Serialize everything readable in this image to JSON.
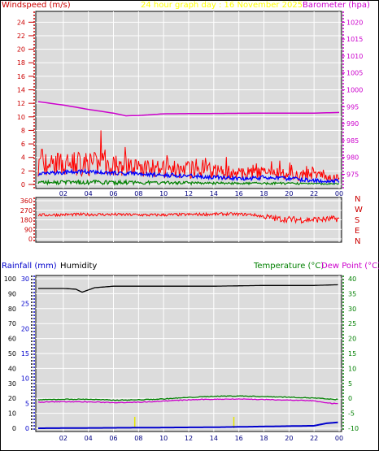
{
  "header": {
    "windspeed": "Windspeed (m/s)",
    "graph_title": "24 hour graph day : 16 November 2025",
    "barometer": "Barometer (hpa)",
    "rainfall": "Rainfall (mm)",
    "humidity": "Humidity",
    "temperature": "Temperature (°C)",
    "dewpoint": "Dew Point (°C)"
  },
  "colors": {
    "wind": "#ff0000",
    "average": "#0000ff",
    "gust_low": "#008000",
    "barometer": "#cc00cc",
    "rain": "#0000cc",
    "humidity": "#000000",
    "temperature": "#008000",
    "dewpoint": "#cc00cc",
    "background": "#dcdcdc"
  },
  "chart_data": [
    {
      "type": "line",
      "name": "wind",
      "x_ticks": [
        "02",
        "04",
        "06",
        "08",
        "10",
        "12",
        "14",
        "16",
        "18",
        "20",
        "22",
        "00"
      ],
      "left_ticks": [
        "0",
        "2",
        "4",
        "6",
        "8",
        "10",
        "12",
        "14",
        "16",
        "18",
        "20",
        "22",
        "24"
      ],
      "right_ticks": [
        "975",
        "980",
        "985",
        "990",
        "995",
        "1000",
        "1005",
        "1010",
        "1015",
        "1020"
      ],
      "ylim_left": [
        0,
        25
      ],
      "ylim_right": [
        972,
        1022
      ],
      "grid": true,
      "barometer": {
        "x": [
          0,
          2,
          4,
          6,
          7,
          8,
          10,
          14,
          18,
          22,
          24
        ],
        "y": [
          996.5,
          995.5,
          994.2,
          993.1,
          992.3,
          992.4,
          992.9,
          993.0,
          993.1,
          993.1,
          993.3
        ]
      },
      "gust_envelope": {
        "x": [
          0,
          2,
          4,
          6,
          8,
          10,
          12,
          14,
          16,
          18,
          20,
          22,
          24
        ],
        "y": [
          4.6,
          5.0,
          4.9,
          4.4,
          4.2,
          3.5,
          3.6,
          3.2,
          2.6,
          2.7,
          2.4,
          2.0,
          1.6
        ]
      },
      "avg_speed": {
        "x": [
          0,
          2,
          4,
          6,
          8,
          10,
          12,
          14,
          16,
          18,
          20,
          22,
          24
        ],
        "y": [
          1.5,
          1.8,
          1.9,
          1.7,
          1.6,
          1.4,
          1.3,
          1.1,
          0.9,
          1.0,
          0.9,
          0.6,
          0.5
        ]
      },
      "gust_peak": {
        "x": 5.0,
        "y": 8.0
      }
    },
    {
      "type": "line",
      "name": "direction",
      "left_ticks": [
        "0",
        "90",
        "180",
        "270",
        "360"
      ],
      "right_labels": [
        "N",
        "W",
        "S",
        "E",
        "N"
      ],
      "ylim": [
        0,
        360
      ],
      "direction": {
        "x": [
          0,
          3,
          6,
          9,
          12,
          15,
          17,
          19,
          21,
          23,
          24
        ],
        "y": [
          225,
          230,
          230,
          225,
          230,
          235,
          230,
          190,
          180,
          185,
          190
        ]
      }
    },
    {
      "type": "line",
      "name": "climate",
      "x_ticks": [
        "02",
        "04",
        "06",
        "08",
        "10",
        "12",
        "14",
        "16",
        "18",
        "20",
        "22",
        "00"
      ],
      "left_ticks": [
        "0",
        "10",
        "20",
        "30",
        "40",
        "50",
        "60",
        "70",
        "80",
        "90",
        "100"
      ],
      "rain_ticks": [
        "0",
        "5",
        "10",
        "15",
        "20",
        "25",
        "30"
      ],
      "right_ticks": [
        "-10",
        "-5",
        "0",
        "5",
        "10",
        "15",
        "20",
        "25",
        "30",
        "35",
        "40"
      ],
      "ylim_humidity": [
        0,
        100
      ],
      "ylim_temp": [
        -10,
        40
      ],
      "humidity": {
        "x": [
          0,
          2,
          3,
          3.5,
          4.5,
          6,
          8,
          10,
          14,
          18,
          22,
          24
        ],
        "y": [
          93.5,
          93.5,
          93,
          91,
          94,
          95,
          95,
          95,
          95,
          95.5,
          95.5,
          96
        ]
      },
      "temperature": {
        "x": [
          0,
          2,
          4,
          6,
          8,
          10,
          12,
          14,
          16,
          18,
          20,
          22,
          23,
          24
        ],
        "y": [
          -0.5,
          -0.3,
          -0.3,
          -0.6,
          -0.5,
          -0.2,
          0.3,
          0.7,
          0.8,
          0.6,
          0.4,
          0.1,
          -0.2,
          -0.4
        ]
      },
      "dewpoint": {
        "x": [
          0,
          2,
          4,
          6,
          8,
          10,
          12,
          14,
          16,
          18,
          20,
          22,
          23,
          24
        ],
        "y": [
          -1.3,
          -1.1,
          -1.2,
          -1.4,
          -1.3,
          -0.9,
          -0.5,
          -0.3,
          -0.2,
          -0.4,
          -0.6,
          -0.8,
          -1.6,
          -1.8
        ]
      },
      "rain": {
        "x": [
          0,
          14,
          22,
          23,
          24
        ],
        "y": [
          0,
          0.2,
          0.5,
          1.0,
          1.2
        ]
      },
      "rain_marks": [
        7.7,
        15.6
      ]
    }
  ]
}
